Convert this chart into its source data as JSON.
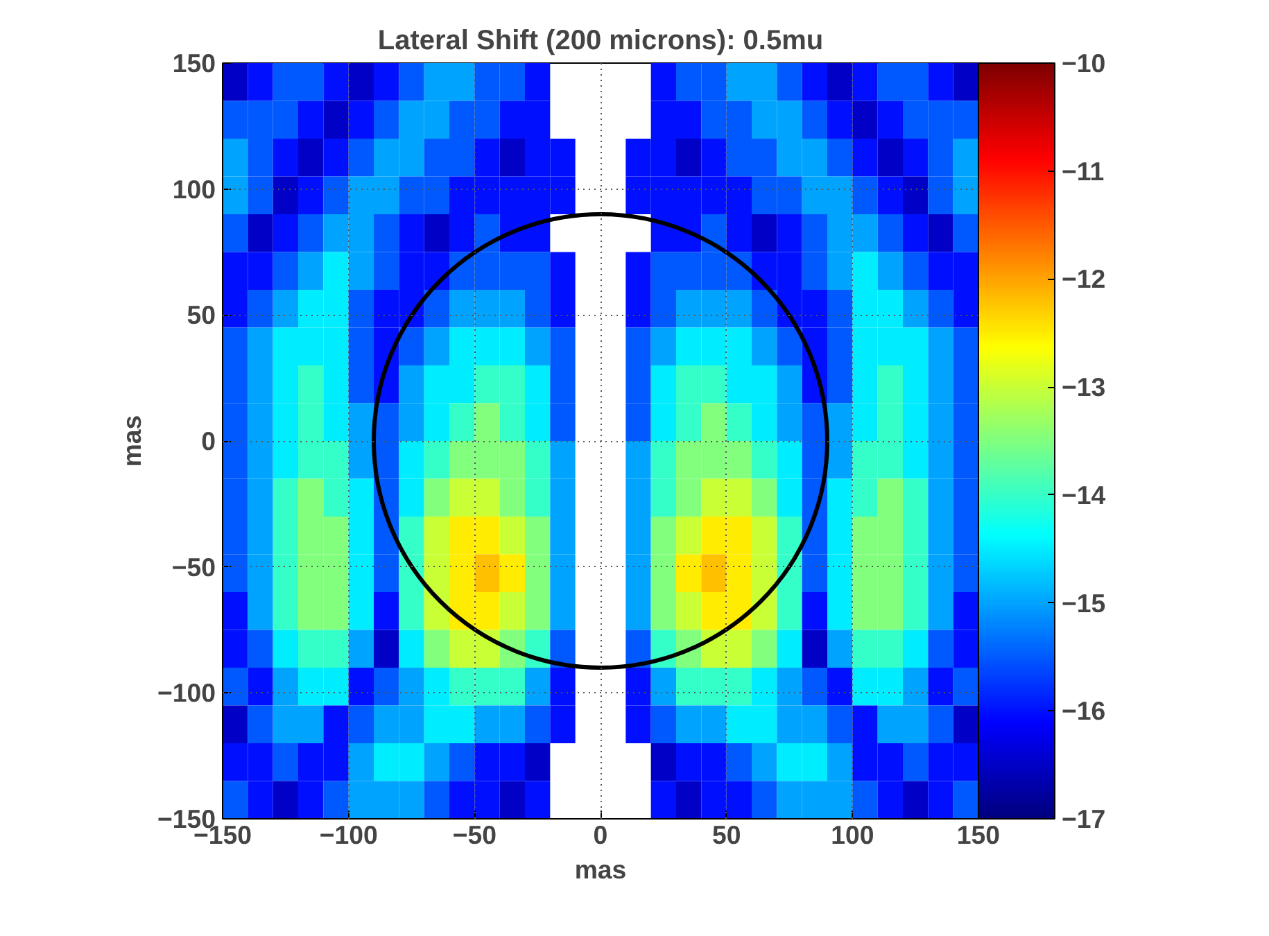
{
  "chart_data": {
    "type": "heatmap",
    "title": "Lateral Shift (200 microns): 0.5mu",
    "xlabel": "mas",
    "ylabel": "mas",
    "x": [
      -145,
      -135,
      -125,
      -115,
      -105,
      -95,
      -85,
      -75,
      -65,
      -55,
      -45,
      -35,
      -25,
      -15,
      -5,
      5,
      15,
      25,
      35,
      45,
      55,
      65,
      75,
      85,
      95,
      105,
      115,
      125,
      135,
      145
    ],
    "y": [
      142.5,
      127.5,
      112.5,
      97.5,
      82.5,
      67.5,
      52.5,
      37.5,
      22.5,
      7.5,
      -7.5,
      -22.5,
      -37.5,
      -52.5,
      -67.5,
      -82.5,
      -97.5,
      -112.5,
      -127.5,
      -142.5
    ],
    "cells": [
      [
        -16.5,
        -16,
        -15.5,
        -15.5,
        -16,
        -16.5,
        -16,
        -15.5,
        -15,
        -15,
        -15.5,
        -15.5,
        -16,
        null,
        null,
        null,
        null,
        -16,
        -15.5,
        -15.5,
        -15,
        -15,
        -15.5,
        -16,
        -16.5,
        -16,
        -15.5,
        -15.5,
        -16,
        -16.5
      ],
      [
        -15.5,
        -15.5,
        -15.5,
        -16,
        -16.5,
        -16,
        -15.5,
        -15,
        -15,
        -15.5,
        -15.5,
        -16,
        -16,
        null,
        null,
        null,
        null,
        -16,
        -16,
        -15.5,
        -15.5,
        -15,
        -15,
        -15.5,
        -16,
        -16.5,
        -16,
        -15.5,
        -15.5,
        -15.5
      ],
      [
        -15,
        -15.5,
        -16,
        -16.5,
        -16,
        -15.5,
        -15,
        -15,
        -15.5,
        -15.5,
        -16,
        -16.5,
        -16,
        -16,
        null,
        null,
        -16,
        -16,
        -16.5,
        -16,
        -15.5,
        -15.5,
        -15,
        -15,
        -15.5,
        -16,
        -16.5,
        -16,
        -15.5,
        -15
      ],
      [
        -15,
        -15.5,
        -16.5,
        -16,
        -15.5,
        -15,
        -15,
        -15.5,
        -15.5,
        -16,
        -16,
        -16,
        -16,
        -16,
        null,
        null,
        -16,
        -16,
        -16,
        -16,
        -16,
        -15.5,
        -15.5,
        -15,
        -15,
        -15.5,
        -16,
        -16.5,
        -15.5,
        -15
      ],
      [
        -15.5,
        -16.5,
        -16,
        -15.5,
        -15,
        -15,
        -15.5,
        -16,
        -16.5,
        -16,
        -15.5,
        -16,
        -16,
        null,
        null,
        null,
        null,
        -16,
        -16,
        -15.5,
        -16,
        -16.5,
        -16,
        -15.5,
        -15,
        -15,
        -15.5,
        -16,
        -16.5,
        -15.5
      ],
      [
        -16,
        -16,
        -15.5,
        -15,
        -14.5,
        -15,
        -15.5,
        -16,
        -16,
        -15.5,
        -15.5,
        -15.5,
        -15.5,
        -16,
        null,
        null,
        -16,
        -15.5,
        -15.5,
        -15.5,
        -15.5,
        -16,
        -16,
        -15.5,
        -15,
        -14.5,
        -15,
        -15.5,
        -16,
        -16
      ],
      [
        -16,
        -15.5,
        -15,
        -14.5,
        -14.5,
        -15.5,
        -16,
        -16,
        -15.5,
        -15,
        -15,
        -15,
        -15.5,
        -16,
        null,
        null,
        -16,
        -15.5,
        -15,
        -15,
        -15,
        -15.5,
        -16,
        -16,
        -15.5,
        -14.5,
        -14.5,
        -15,
        -15.5,
        -16
      ],
      [
        -15.5,
        -15,
        -14.5,
        -14.5,
        -14.5,
        -15.5,
        -16,
        -15.5,
        -15,
        -14.5,
        -14.5,
        -14.5,
        -15,
        -15.5,
        null,
        null,
        -15.5,
        -15,
        -14.5,
        -14.5,
        -14.5,
        -15,
        -15.5,
        -16,
        -15.5,
        -14.5,
        -14.5,
        -14.5,
        -15,
        -15.5
      ],
      [
        -15.5,
        -15,
        -14.5,
        -14,
        -14.5,
        -15.5,
        -16,
        -15,
        -14.5,
        -14.5,
        -14,
        -14,
        -14.5,
        -15.5,
        null,
        null,
        -15.5,
        -14.5,
        -14,
        -14,
        -14.5,
        -14.5,
        -15,
        -16,
        -15.5,
        -14.5,
        -14,
        -14.5,
        -15,
        -15.5
      ],
      [
        -15.5,
        -15,
        -14.5,
        -14,
        -14.5,
        -15,
        -15.5,
        -15,
        -14.5,
        -14,
        -13.5,
        -14,
        -14.5,
        -15.5,
        null,
        null,
        -15.5,
        -14.5,
        -14,
        -13.5,
        -14,
        -14.5,
        -15,
        -15.5,
        -15,
        -14.5,
        -14,
        -14.5,
        -15,
        -15.5
      ],
      [
        -15.5,
        -15,
        -14.5,
        -14,
        -14,
        -15,
        -15.5,
        -14.5,
        -14,
        -13.5,
        -13.5,
        -13.5,
        -14,
        -15,
        null,
        null,
        -15,
        -14,
        -13.5,
        -13.5,
        -13.5,
        -14,
        -14.5,
        -15.5,
        -15,
        -14,
        -14,
        -14.5,
        -15,
        -15.5
      ],
      [
        -15.5,
        -15,
        -14,
        -13.5,
        -14,
        -14.5,
        -15.5,
        -14.5,
        -13.5,
        -13,
        -13,
        -13.5,
        -14,
        -15,
        null,
        null,
        -15,
        -14,
        -13.5,
        -13,
        -13,
        -13.5,
        -14.5,
        -15.5,
        -14.5,
        -14,
        -13.5,
        -14,
        -15,
        -15.5
      ],
      [
        -15.5,
        -15,
        -14,
        -13.5,
        -13.5,
        -14.5,
        -15.5,
        -14,
        -13,
        -12.5,
        -12.5,
        -13,
        -13.5,
        -15,
        null,
        null,
        -15,
        -13.5,
        -13,
        -12.5,
        -12.5,
        -13,
        -14,
        -15.5,
        -14.5,
        -13.5,
        -13.5,
        -14,
        -15,
        -15.5
      ],
      [
        -15.5,
        -15,
        -14,
        -13.5,
        -13.5,
        -14.5,
        -15.5,
        -14,
        -13,
        -12.5,
        -12.2,
        -12.5,
        -13.5,
        -15,
        null,
        null,
        -15,
        -13.5,
        -12.5,
        -12.2,
        -12.5,
        -13,
        -14,
        -15.5,
        -14.5,
        -13.5,
        -13.5,
        -14,
        -15,
        -15.5
      ],
      [
        -16,
        -15,
        -14,
        -13.5,
        -13.5,
        -14.5,
        -16,
        -14,
        -13,
        -12.5,
        -12.5,
        -13,
        -13.5,
        -15,
        null,
        null,
        -15,
        -13.5,
        -13,
        -12.5,
        -12.5,
        -13,
        -14,
        -16,
        -14.5,
        -13.5,
        -13.5,
        -14,
        -15,
        -16
      ],
      [
        -16,
        -15.5,
        -14.5,
        -14,
        -14,
        -15,
        -16.5,
        -14.5,
        -13.5,
        -13,
        -13,
        -13.5,
        -14,
        -15.5,
        null,
        null,
        -15.5,
        -14,
        -13.5,
        -13,
        -13,
        -13.5,
        -14.5,
        -16.5,
        -15,
        -14,
        -14,
        -14.5,
        -15.5,
        -16
      ],
      [
        -15.5,
        -16,
        -15,
        -14.5,
        -14.5,
        -16,
        -15.5,
        -15,
        -14.5,
        -14,
        -14,
        -14,
        -15,
        -16,
        null,
        null,
        -16,
        -15,
        -14,
        -14,
        -14,
        -14.5,
        -15,
        -15.5,
        -16,
        -14.5,
        -14.5,
        -15,
        -16,
        -15.5
      ],
      [
        -16.5,
        -15.5,
        -15,
        -15,
        -16,
        -15.5,
        -15,
        -15,
        -14.5,
        -14.5,
        -15,
        -15,
        -15.5,
        -16,
        null,
        null,
        -16,
        -15.5,
        -15,
        -15,
        -14.5,
        -14.5,
        -15,
        -15,
        -15.5,
        -16,
        -15,
        -15,
        -15.5,
        -16.5
      ],
      [
        -16,
        -16,
        -15.5,
        -16,
        -16,
        -15,
        -14.5,
        -14.5,
        -15,
        -15.5,
        -16,
        -16,
        -16.5,
        null,
        null,
        null,
        null,
        -16.5,
        -16,
        -16,
        -15.5,
        -15,
        -14.5,
        -14.5,
        -15,
        -16,
        -16,
        -15.5,
        -16,
        -16
      ],
      [
        -15.5,
        -16,
        -16.5,
        -16,
        -15.5,
        -15,
        -15,
        -15,
        -15.5,
        -16,
        -16,
        -16.5,
        -16,
        null,
        null,
        null,
        null,
        -16,
        -16.5,
        -16,
        -16,
        -15.5,
        -15,
        -15,
        -15,
        -15.5,
        -16,
        -16.5,
        -16,
        -15.5
      ]
    ],
    "clim": [
      -17,
      -10
    ],
    "cticks": [
      -17,
      -16,
      -15,
      -14,
      -13,
      -12,
      -11,
      -10
    ],
    "xlim": [
      -150,
      150
    ],
    "ylim": [
      -150,
      150
    ],
    "xticks": [
      -150,
      -100,
      -50,
      0,
      50,
      100,
      150
    ],
    "yticks": [
      -150,
      -100,
      -50,
      0,
      50,
      100,
      150
    ],
    "grid": true
  }
}
